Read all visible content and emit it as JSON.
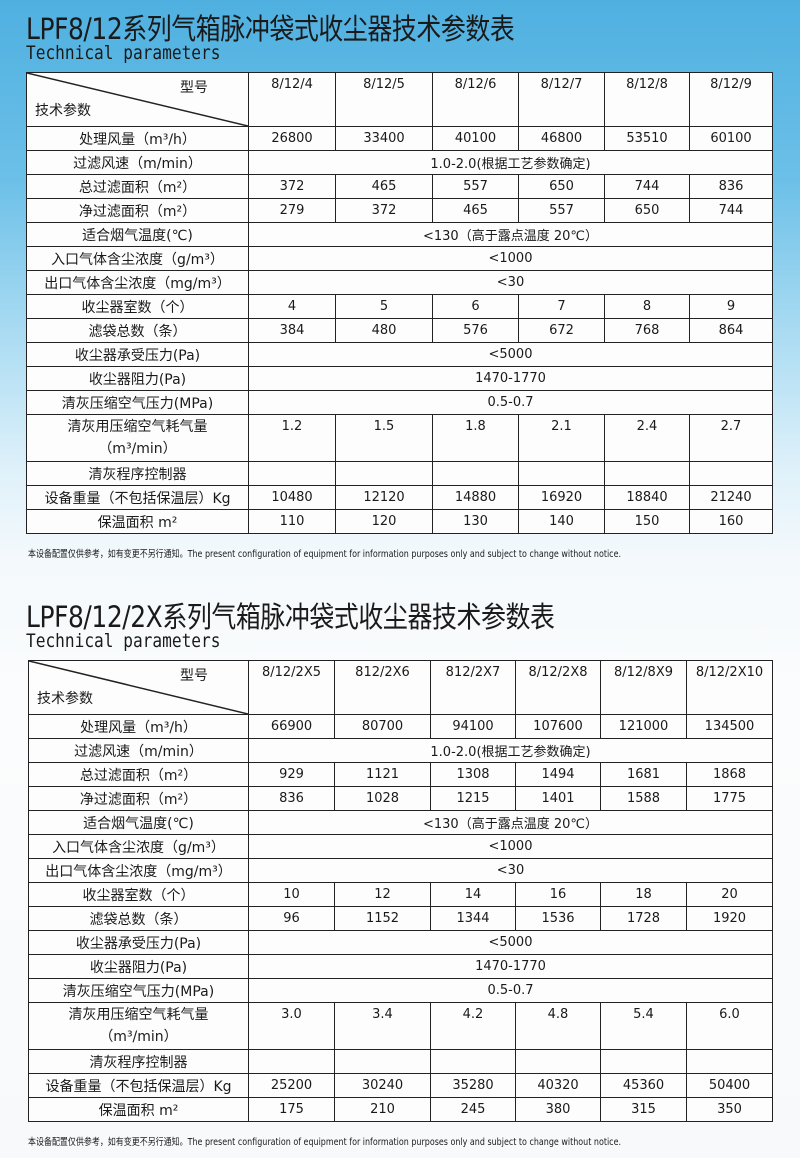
{
  "tables": [
    {
      "title": "LPF8/12系列气箱脉冲袋式收尘器技术参数表",
      "subtitle": "Technical parameters",
      "corner_top": "型号",
      "corner_bottom": "技术参数",
      "models": [
        "8/12/4",
        "8/12/5",
        "8/12/6",
        "8/12/7",
        "8/12/8",
        "8/12/9"
      ],
      "rows": [
        {
          "label": "处理风量（m³/h）",
          "values": [
            "26800",
            "33400",
            "40100",
            "46800",
            "53510",
            "60100"
          ]
        },
        {
          "label": "过滤风速（m/min）",
          "span": "1.0-2.0(根据工艺参数确定)"
        },
        {
          "label": "总过滤面积（m²）",
          "values": [
            "372",
            "465",
            "557",
            "650",
            "744",
            "836"
          ]
        },
        {
          "label": "净过滤面积（m²）",
          "values": [
            "279",
            "372",
            "465",
            "557",
            "650",
            "744"
          ]
        },
        {
          "label": "适合烟气温度(℃)",
          "span": "<130（高于露点温度 20℃）"
        },
        {
          "label": "入口气体含尘浓度（g/m³）",
          "span": "<1000"
        },
        {
          "label": "出口气体含尘浓度（mg/m³）",
          "span": "<30"
        },
        {
          "label": "收尘器室数（个）",
          "values": [
            "4",
            "5",
            "6",
            "7",
            "8",
            "9"
          ]
        },
        {
          "label": "滤袋总数（条）",
          "values": [
            "384",
            "480",
            "576",
            "672",
            "768",
            "864"
          ]
        },
        {
          "label": "收尘器承受压力(Pa)",
          "span": "<5000"
        },
        {
          "label": "收尘器阻力(Pa)",
          "span": "1470-1770"
        },
        {
          "label": "清灰压缩空气压力(MPa)",
          "span": "0.5-0.7"
        },
        {
          "label": "清灰用压缩空气耗气量",
          "label2": "（m³/min）",
          "values": [
            "1.2",
            "1.5",
            "1.8",
            "2.1",
            "2.4",
            "2.7"
          ]
        },
        {
          "label": "清灰程序控制器",
          "values": [
            "",
            "",
            "",
            "",
            "",
            ""
          ]
        },
        {
          "label": "设备重量（不包括保温层）Kg",
          "values": [
            "10480",
            "12120",
            "14880",
            "16920",
            "18840",
            "21240"
          ]
        },
        {
          "label": "保温面积 m²",
          "values": [
            "110",
            "120",
            "130",
            "140",
            "150",
            "160"
          ]
        }
      ],
      "note": "本设备配置仅供参考，如有变更不另行通知。The present configuration of equipment for information purposes only and subject to change without notice."
    },
    {
      "title": "LPF8/12/2X系列气箱脉冲袋式收尘器技术参数表",
      "subtitle": "Technical parameters",
      "corner_top": "型号",
      "corner_bottom": "技术参数",
      "models": [
        "8/12/2X5",
        "812/2X6",
        "812/2X7",
        "8/12/2X8",
        "8/12/8X9",
        "8/12/2X10"
      ],
      "rows": [
        {
          "label": "处理风量（m³/h）",
          "values": [
            "66900",
            "80700",
            "94100",
            "107600",
            "121000",
            "134500"
          ]
        },
        {
          "label": "过滤风速（m/min）",
          "span": "1.0-2.0(根据工艺参数确定)"
        },
        {
          "label": "总过滤面积（m²）",
          "values": [
            "929",
            "1121",
            "1308",
            "1494",
            "1681",
            "1868"
          ]
        },
        {
          "label": "净过滤面积（m²）",
          "values": [
            "836",
            "1028",
            "1215",
            "1401",
            "1588",
            "1775"
          ]
        },
        {
          "label": "适合烟气温度(℃)",
          "span": "<130（高于露点温度 20℃）"
        },
        {
          "label": "入口气体含尘浓度（g/m³）",
          "span": "<1000"
        },
        {
          "label": "出口气体含尘浓度（mg/m³）",
          "span": "<30"
        },
        {
          "label": "收尘器室数（个）",
          "values": [
            "10",
            "12",
            "14",
            "16",
            "18",
            "20"
          ]
        },
        {
          "label": "滤袋总数（条）",
          "values": [
            "96",
            "1152",
            "1344",
            "1536",
            "1728",
            "1920"
          ]
        },
        {
          "label": "收尘器承受压力(Pa)",
          "span": "<5000"
        },
        {
          "label": "收尘器阻力(Pa)",
          "span": "1470-1770"
        },
        {
          "label": "清灰压缩空气压力(MPa)",
          "span": "0.5-0.7"
        },
        {
          "label": "清灰用压缩空气耗气量",
          "label2": "（m³/min）",
          "values": [
            "3.0",
            "3.4",
            "4.2",
            "4.8",
            "5.4",
            "6.0"
          ]
        },
        {
          "label": "清灰程序控制器",
          "values": [
            "",
            "",
            "",
            "",
            "",
            ""
          ]
        },
        {
          "label": "设备重量（不包括保温层）Kg",
          "values": [
            "25200",
            "30240",
            "35280",
            "40320",
            "45360",
            "50400"
          ]
        },
        {
          "label": "保温面积 m²",
          "values": [
            "175",
            "210",
            "245",
            "380",
            "315",
            "350"
          ]
        }
      ],
      "note": "本设备配置仅供参考，如有变更不另行通知。The present configuration of equipment for information purposes only and subject to change without notice."
    }
  ]
}
